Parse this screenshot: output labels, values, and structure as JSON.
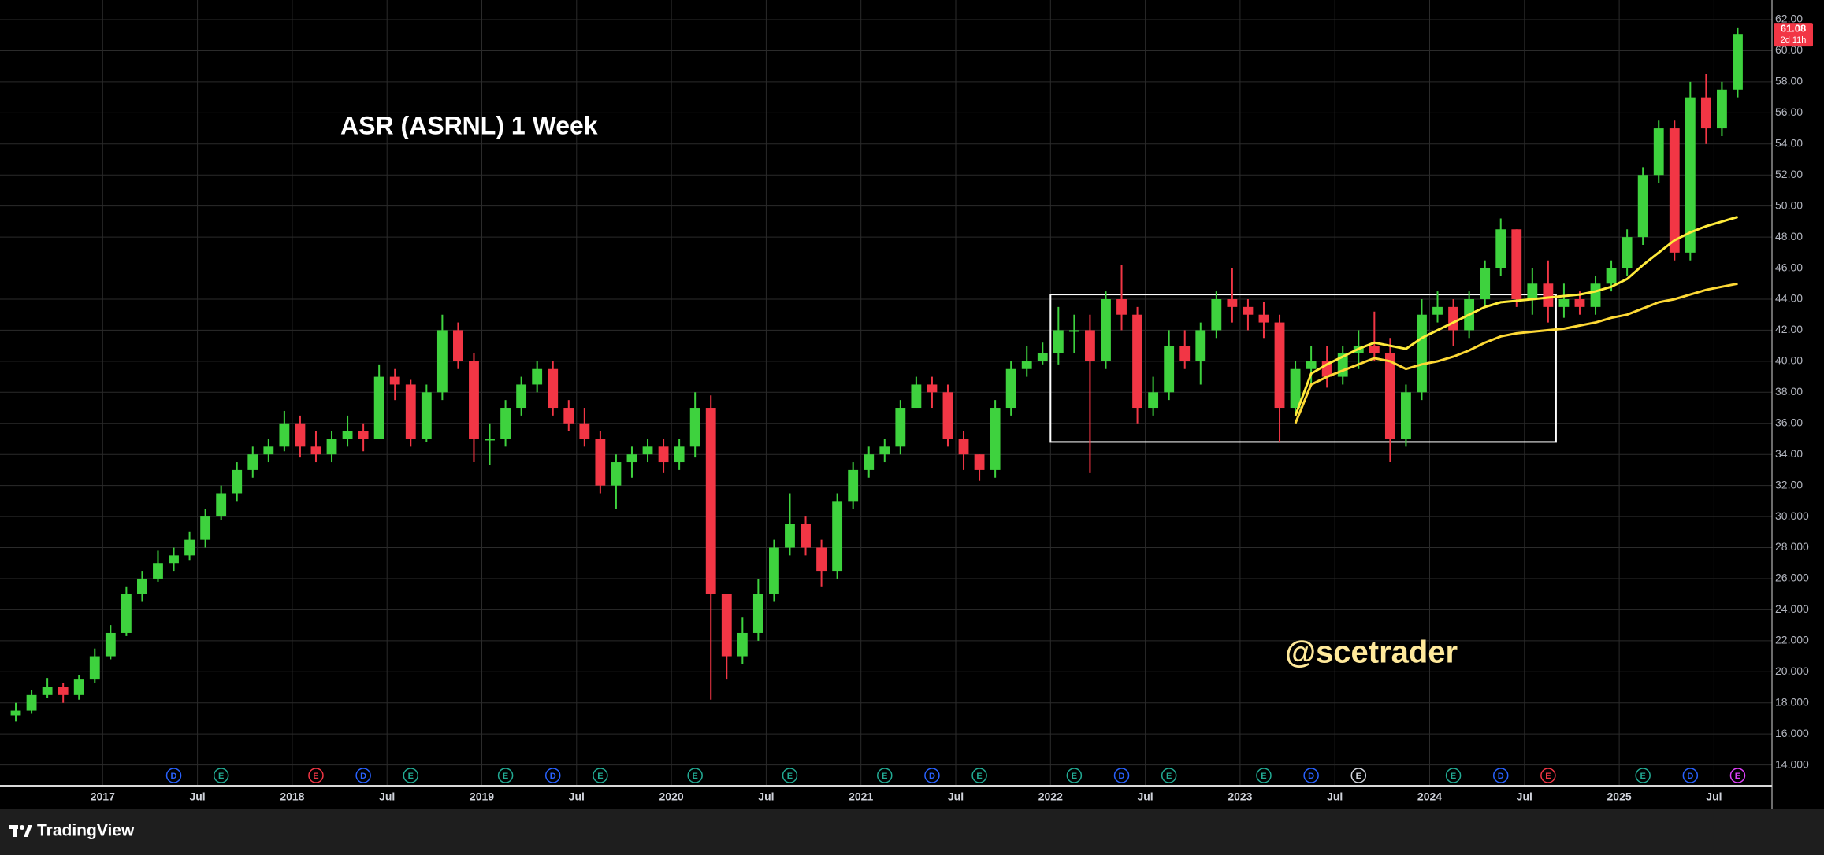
{
  "chart_data": {
    "type": "candlestick",
    "title": "ASR (ASRNL) 1 Week",
    "watermark": "@scetrader",
    "x": [
      "2016-07",
      "2016-08",
      "2016-09",
      "2016-10",
      "2016-11",
      "2016-12",
      "2017-01",
      "2017-02",
      "2017-03",
      "2017-04",
      "2017-05",
      "2017-06",
      "2017-07",
      "2017-08",
      "2017-09",
      "2017-10",
      "2017-11",
      "2017-12",
      "2018-01",
      "2018-02",
      "2018-03",
      "2018-04",
      "2018-05",
      "2018-06",
      "2018-07",
      "2018-08",
      "2018-09",
      "2018-10",
      "2018-11",
      "2018-12",
      "2019-01",
      "2019-02",
      "2019-03",
      "2019-04",
      "2019-05",
      "2019-06",
      "2019-07",
      "2019-08",
      "2019-09",
      "2019-10",
      "2019-11",
      "2019-12",
      "2020-01",
      "2020-02",
      "2020-03",
      "2020-04",
      "2020-05",
      "2020-06",
      "2020-07",
      "2020-08",
      "2020-09",
      "2020-10",
      "2020-11",
      "2020-12",
      "2021-01",
      "2021-02",
      "2021-03",
      "2021-04",
      "2021-05",
      "2021-06",
      "2021-07",
      "2021-08",
      "2021-09",
      "2021-10",
      "2021-11",
      "2021-12",
      "2022-01",
      "2022-02",
      "2022-03",
      "2022-04",
      "2022-05",
      "2022-06",
      "2022-07",
      "2022-08",
      "2022-09",
      "2022-10",
      "2022-11",
      "2022-12",
      "2023-01",
      "2023-02",
      "2023-03",
      "2023-04",
      "2023-05",
      "2023-06",
      "2023-07",
      "2023-08",
      "2023-09",
      "2023-10",
      "2023-11",
      "2023-12",
      "2024-01",
      "2024-02",
      "2024-03",
      "2024-04",
      "2024-05",
      "2024-06",
      "2024-07",
      "2024-08",
      "2024-09",
      "2024-10",
      "2024-11",
      "2024-12",
      "2025-01",
      "2025-02",
      "2025-03",
      "2025-04",
      "2025-05",
      "2025-06",
      "2025-07",
      "2025-08"
    ],
    "open": [
      17.2,
      17.5,
      18.5,
      19,
      18.5,
      19.5,
      21,
      22.5,
      25,
      26,
      27,
      27.5,
      28.5,
      30,
      31.5,
      33,
      34,
      34.5,
      36,
      34.5,
      34,
      35,
      35.5,
      35,
      39,
      38.5,
      35,
      38,
      42,
      40,
      35,
      35,
      37,
      38.5,
      39.5,
      37,
      36,
      35,
      32,
      33.5,
      34,
      34.5,
      33.5,
      34.5,
      37,
      25,
      21,
      22.5,
      25,
      28,
      29.5,
      28,
      26.5,
      31,
      33,
      34,
      34.5,
      37,
      38.5,
      38,
      35,
      34,
      33,
      37,
      39.5,
      40,
      40.5,
      42,
      42,
      40,
      44,
      43,
      37,
      38,
      41,
      40,
      42,
      44,
      43.5,
      43,
      42.5,
      37,
      39.5,
      40,
      39,
      40.5,
      41,
      40.5,
      35,
      38,
      43,
      43.5,
      42,
      44,
      46,
      48.5,
      44,
      45,
      43.5,
      44,
      43.5,
      45,
      46,
      48,
      52,
      55,
      47,
      57,
      55,
      57.5
    ],
    "high": [
      18,
      18.8,
      19.6,
      19.3,
      19.8,
      21.5,
      23,
      25.5,
      26.5,
      27.8,
      28,
      29,
      30.5,
      32,
      33.5,
      34.5,
      35,
      36.8,
      36.5,
      35.5,
      35.5,
      36.5,
      36,
      39.8,
      39.5,
      38.8,
      38.5,
      43,
      42.5,
      40.5,
      36,
      37.5,
      39,
      40,
      40,
      37.5,
      37,
      35.5,
      34,
      34.5,
      35,
      35,
      35,
      38,
      37.8,
      25,
      23.5,
      26,
      28.5,
      31.5,
      30,
      28.5,
      31.5,
      33.5,
      34.5,
      35,
      37.5,
      39,
      39,
      38.5,
      35.5,
      34,
      37.5,
      40,
      41,
      41.2,
      43.5,
      43,
      43,
      44.5,
      46.2,
      43.5,
      39,
      42,
      42,
      42.5,
      44.5,
      46,
      44,
      43.8,
      43,
      40,
      41,
      41,
      41,
      42,
      43.2,
      41.5,
      38.5,
      44,
      44.5,
      44,
      44.5,
      46.5,
      49.2,
      48.5,
      46,
      46.5,
      45,
      44.5,
      45.5,
      46.5,
      48.5,
      52.5,
      55.5,
      55.5,
      58,
      58.5,
      58,
      61.5
    ],
    "low": [
      16.8,
      17.3,
      18.3,
      18,
      18.2,
      19.3,
      20.8,
      22.3,
      24.5,
      25.8,
      26.5,
      27.2,
      28,
      29.8,
      31,
      32.5,
      33.5,
      34.2,
      33.8,
      33.5,
      33.5,
      34.5,
      34.2,
      35,
      37.5,
      34.5,
      34.8,
      37.5,
      39.5,
      33.5,
      33.3,
      34.5,
      36.5,
      38,
      36.5,
      35.5,
      34.5,
      31.5,
      30.5,
      32.5,
      33.5,
      32.8,
      33,
      33.8,
      18.2,
      19.5,
      20.5,
      22,
      24.5,
      27.5,
      27.5,
      25.5,
      26,
      30.5,
      32.5,
      33.5,
      34,
      37,
      37,
      34.5,
      33,
      32.3,
      32.5,
      36.5,
      39,
      39.8,
      39.8,
      40.5,
      32.8,
      39.5,
      42,
      36,
      36.5,
      37.5,
      39.5,
      38.5,
      41.5,
      42.5,
      42,
      41.5,
      34.8,
      36.5,
      38.5,
      38.3,
      38.5,
      39.5,
      40,
      33.5,
      34.5,
      37.5,
      42.5,
      41,
      41.5,
      43.5,
      45.5,
      43.5,
      43,
      42.5,
      42.8,
      43,
      43,
      44.5,
      45.5,
      47.5,
      51.5,
      46.5,
      46.5,
      54,
      54.5,
      57
    ],
    "close": [
      17.5,
      18.5,
      19,
      18.5,
      19.5,
      21,
      22.5,
      25,
      26,
      27,
      27.5,
      28.5,
      30,
      31.5,
      33,
      34,
      34.5,
      36,
      34.5,
      34,
      35,
      35.5,
      35,
      39,
      38.5,
      35,
      38,
      42,
      40,
      35,
      35,
      37,
      38.5,
      39.5,
      37,
      36,
      35,
      32,
      33.5,
      34,
      34.5,
      33.5,
      34.5,
      37,
      25,
      21,
      22.5,
      25,
      28,
      29.5,
      28,
      26.5,
      31,
      33,
      34,
      34.5,
      37,
      38.5,
      38,
      35,
      34,
      33,
      37,
      39.5,
      40,
      40.5,
      42,
      42,
      40,
      44,
      43,
      37,
      38,
      41,
      40,
      42,
      44,
      43.5,
      43,
      42.5,
      37,
      39.5,
      40,
      39,
      40.5,
      41,
      40.5,
      35,
      38,
      43,
      43.5,
      42,
      44,
      46,
      48.5,
      44,
      45,
      43.5,
      44,
      43.5,
      45,
      46,
      48,
      52,
      55,
      47,
      57,
      55,
      57.5,
      61.08
    ],
    "up_color": "#3ed23e",
    "down_color": "#f23645",
    "overlays": [
      {
        "color": "#ffeb3b",
        "values": [
          null,
          null,
          null,
          null,
          null,
          null,
          null,
          null,
          null,
          null,
          null,
          null,
          null,
          null,
          null,
          null,
          null,
          null,
          null,
          null,
          null,
          null,
          null,
          null,
          null,
          null,
          null,
          null,
          null,
          null,
          null,
          null,
          null,
          null,
          null,
          null,
          null,
          null,
          null,
          null,
          null,
          null,
          null,
          null,
          null,
          null,
          null,
          null,
          null,
          null,
          null,
          null,
          null,
          null,
          null,
          null,
          null,
          null,
          null,
          null,
          null,
          null,
          null,
          null,
          null,
          null,
          null,
          null,
          null,
          null,
          null,
          null,
          null,
          null,
          null,
          null,
          null,
          null,
          null,
          null,
          null,
          36.5,
          39.2,
          39.8,
          40.3,
          40.8,
          41.2,
          41,
          40.8,
          41.5,
          42,
          42.5,
          43,
          43.5,
          43.8,
          43.9,
          44,
          44.1,
          44.2,
          44.3,
          44.5,
          44.8,
          45.3,
          46.2,
          47,
          47.8,
          48.3,
          48.7,
          49,
          49.3
        ]
      },
      {
        "color": "#fdd835",
        "values": [
          null,
          null,
          null,
          null,
          null,
          null,
          null,
          null,
          null,
          null,
          null,
          null,
          null,
          null,
          null,
          null,
          null,
          null,
          null,
          null,
          null,
          null,
          null,
          null,
          null,
          null,
          null,
          null,
          null,
          null,
          null,
          null,
          null,
          null,
          null,
          null,
          null,
          null,
          null,
          null,
          null,
          null,
          null,
          null,
          null,
          null,
          null,
          null,
          null,
          null,
          null,
          null,
          null,
          null,
          null,
          null,
          null,
          null,
          null,
          null,
          null,
          null,
          null,
          null,
          null,
          null,
          null,
          null,
          null,
          null,
          null,
          null,
          null,
          null,
          null,
          null,
          null,
          null,
          null,
          null,
          null,
          36,
          38.5,
          39,
          39.4,
          39.8,
          40.2,
          40,
          39.5,
          39.8,
          40,
          40.3,
          40.7,
          41.2,
          41.6,
          41.8,
          41.9,
          42,
          42.1,
          42.3,
          42.5,
          42.8,
          43,
          43.4,
          43.8,
          44,
          44.3,
          44.6,
          44.8,
          45
        ]
      }
    ],
    "box": {
      "x": [
        "2022-01",
        "2024-09"
      ],
      "y": [
        34.8,
        44.3
      ],
      "color": "#ffffff"
    },
    "events": [
      {
        "x": "2017-05",
        "label": "D",
        "color": "#2962ff"
      },
      {
        "x": "2017-08",
        "label": "E",
        "color": "#22ab94"
      },
      {
        "x": "2018-02",
        "label": "E",
        "color": "#f23645"
      },
      {
        "x": "2018-05",
        "label": "D",
        "color": "#2962ff"
      },
      {
        "x": "2018-08",
        "label": "E",
        "color": "#22ab94"
      },
      {
        "x": "2019-02",
        "label": "E",
        "color": "#22ab94"
      },
      {
        "x": "2019-05",
        "label": "D",
        "color": "#2962ff"
      },
      {
        "x": "2019-08",
        "label": "E",
        "color": "#22ab94"
      },
      {
        "x": "2020-02",
        "label": "E",
        "color": "#22ab94"
      },
      {
        "x": "2020-08",
        "label": "E",
        "color": "#22ab94"
      },
      {
        "x": "2021-02",
        "label": "E",
        "color": "#22ab94"
      },
      {
        "x": "2021-05",
        "label": "D",
        "color": "#2962ff"
      },
      {
        "x": "2021-08",
        "label": "E",
        "color": "#22ab94"
      },
      {
        "x": "2022-02",
        "label": "E",
        "color": "#22ab94"
      },
      {
        "x": "2022-05",
        "label": "D",
        "color": "#2962ff"
      },
      {
        "x": "2022-08",
        "label": "E",
        "color": "#22ab94"
      },
      {
        "x": "2023-02",
        "label": "E",
        "color": "#22ab94"
      },
      {
        "x": "2023-05",
        "label": "D",
        "color": "#2962ff"
      },
      {
        "x": "2023-08",
        "label": "E",
        "color": "#d1d4dc"
      },
      {
        "x": "2024-02",
        "label": "E",
        "color": "#22ab94"
      },
      {
        "x": "2024-05",
        "label": "D",
        "color": "#2962ff"
      },
      {
        "x": "2024-08",
        "label": "E",
        "color": "#f23645"
      },
      {
        "x": "2025-02",
        "label": "E",
        "color": "#22ab94"
      },
      {
        "x": "2025-05",
        "label": "D",
        "color": "#2962ff"
      },
      {
        "x": "2025-08",
        "label": "E",
        "color": "#e040fb"
      }
    ],
    "last_price": 61.08,
    "countdown": "2d 11h",
    "last_price_color": "#f23645",
    "ylim": [
      12.66,
      63.27
    ],
    "yticks": [
      {
        "value": 14,
        "label": "14.000"
      },
      {
        "value": 16,
        "label": "16.000"
      },
      {
        "value": 18,
        "label": "18.000"
      },
      {
        "value": 20,
        "label": "20.000"
      },
      {
        "value": 22,
        "label": "22.000"
      },
      {
        "value": 24,
        "label": "24.000"
      },
      {
        "value": 26,
        "label": "26.000"
      },
      {
        "value": 28,
        "label": "28.000"
      },
      {
        "value": 30,
        "label": "30.000"
      },
      {
        "value": 32,
        "label": "32.00"
      },
      {
        "value": 34,
        "label": "34.00"
      },
      {
        "value": 36,
        "label": "36.00"
      },
      {
        "value": 38,
        "label": "38.00"
      },
      {
        "value": 40,
        "label": "40.00"
      },
      {
        "value": 42,
        "label": "42.00"
      },
      {
        "value": 44,
        "label": "44.00"
      },
      {
        "value": 46,
        "label": "46.00"
      },
      {
        "value": 48,
        "label": "48.00"
      },
      {
        "value": 50,
        "label": "50.00"
      },
      {
        "value": 52,
        "label": "52.00"
      },
      {
        "value": 54,
        "label": "54.00"
      },
      {
        "value": 56,
        "label": "56.00"
      },
      {
        "value": 58,
        "label": "58.00"
      },
      {
        "value": 60,
        "label": "60.00"
      },
      {
        "value": 62,
        "label": "62.00"
      }
    ],
    "xticks": [
      {
        "value": "2017-01",
        "label": "2017"
      },
      {
        "value": "2017-07",
        "label": "Jul"
      },
      {
        "value": "2018-01",
        "label": "2018"
      },
      {
        "value": "2018-07",
        "label": "Jul"
      },
      {
        "value": "2019-01",
        "label": "2019"
      },
      {
        "value": "2019-07",
        "label": "Jul"
      },
      {
        "value": "2020-01",
        "label": "2020"
      },
      {
        "value": "2020-07",
        "label": "Jul"
      },
      {
        "value": "2021-01",
        "label": "2021"
      },
      {
        "value": "2021-07",
        "label": "Jul"
      },
      {
        "value": "2022-01",
        "label": "2022"
      },
      {
        "value": "2022-07",
        "label": "Jul"
      },
      {
        "value": "2023-01",
        "label": "2023"
      },
      {
        "value": "2023-07",
        "label": "Jul"
      },
      {
        "value": "2024-01",
        "label": "2024"
      },
      {
        "value": "2024-07",
        "label": "Jul"
      },
      {
        "value": "2025-01",
        "label": "2025"
      },
      {
        "value": "2025-07",
        "label": "Jul"
      }
    ],
    "grid": true
  },
  "footer": {
    "brand": "TradingView"
  }
}
